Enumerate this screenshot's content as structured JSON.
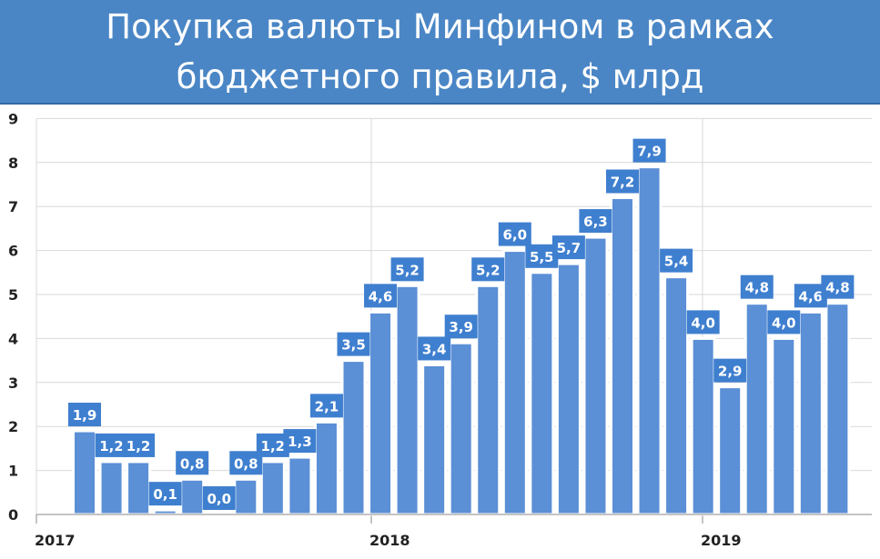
{
  "title": {
    "line1": "Покупка валюты Минфином в рамках",
    "line2": "бюджетного правила, $ млрд"
  },
  "colors": {
    "banner": "#4a86c5",
    "bar": "#5b8fd6",
    "label_bg": "#3f7fcf",
    "label_text": "#ffffff",
    "grid": "#d9d9d9"
  },
  "chart_data": {
    "type": "bar",
    "title": "Покупка валюты Минфином в рамках бюджетного правила, $ млрд",
    "xlabel": "",
    "ylabel": "",
    "ylim": [
      0,
      9
    ],
    "yticks": [
      "0",
      "1",
      "2",
      "3",
      "4",
      "5",
      "6",
      "7",
      "8",
      "9"
    ],
    "year_labels": [
      "2017",
      "2018",
      "2019"
    ],
    "grid": true,
    "values": [
      1.9,
      1.2,
      1.2,
      0.1,
      0.8,
      0.0,
      0.8,
      1.2,
      1.3,
      2.1,
      3.5,
      4.6,
      5.2,
      3.4,
      3.9,
      5.2,
      6.0,
      5.5,
      5.7,
      6.3,
      7.2,
      7.9,
      5.4,
      4.0,
      2.9,
      4.8,
      4.0,
      4.6,
      4.8
    ],
    "data_labels": [
      "1,9",
      "1,2",
      "1,2",
      "0,1",
      "0,8",
      "0,0",
      "0,8",
      "1,2",
      "1,3",
      "2,1",
      "3,5",
      "4,6",
      "5,2",
      "3,4",
      "3,9",
      "5,2",
      "6,0",
      "5,5",
      "5,7",
      "6,3",
      "7,2",
      "7,9",
      "5,4",
      "4,0",
      "2,9",
      "4,8",
      "4,0",
      "4,6",
      "4,8"
    ]
  }
}
